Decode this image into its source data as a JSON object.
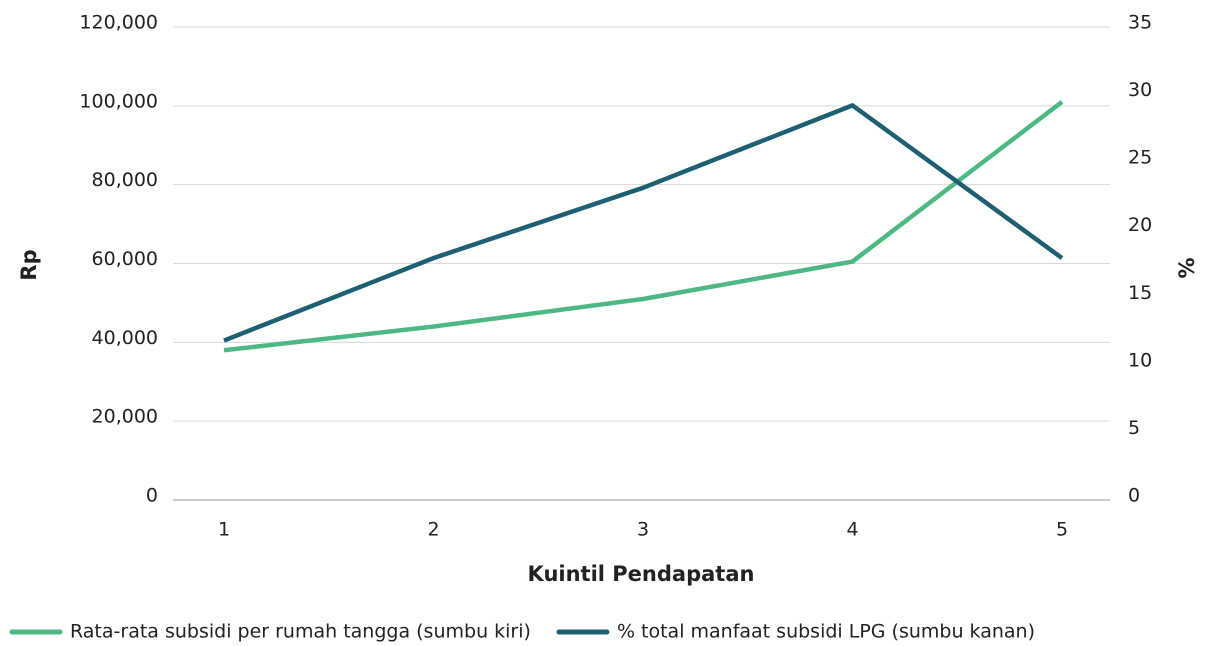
{
  "chart_data": {
    "type": "line",
    "xlabel": "Kuintil Pendapatan",
    "ylabel": "Rp",
    "y2label": "%",
    "categories": [
      "1",
      "2",
      "3",
      "4",
      "5"
    ],
    "series": [
      {
        "name": "Rata-rata subsidi per rumah tangga (sumbu kiri)",
        "color": "#4db882",
        "values": [
          38000,
          44000,
          51000,
          60500,
          101000
        ]
      },
      {
        "name": "% total manfaat subsidi LPG (sumbu kanan)",
        "color": "#1f5f73",
        "axis": "y2",
        "values": [
          11.8,
          17.9,
          23.1,
          29.2,
          17.9
        ]
      }
    ],
    "ylim": [
      0,
      120000
    ],
    "yticks": [
      0,
      {
        "value": 20000,
        "label": "20,000"
      },
      {
        "value": 40000,
        "label": "40,000"
      },
      {
        "value": 60000,
        "label": "60,000"
      },
      {
        "value": 80000,
        "label": "80,000"
      },
      {
        "value": 100000,
        "label": "100,000"
      },
      {
        "value": 120000,
        "label": "120,000"
      }
    ],
    "y2lim": [
      0,
      35
    ],
    "y2ticks": [
      0,
      5,
      10,
      15,
      20,
      25,
      30,
      35
    ],
    "grid": true,
    "legend": "bottom"
  }
}
